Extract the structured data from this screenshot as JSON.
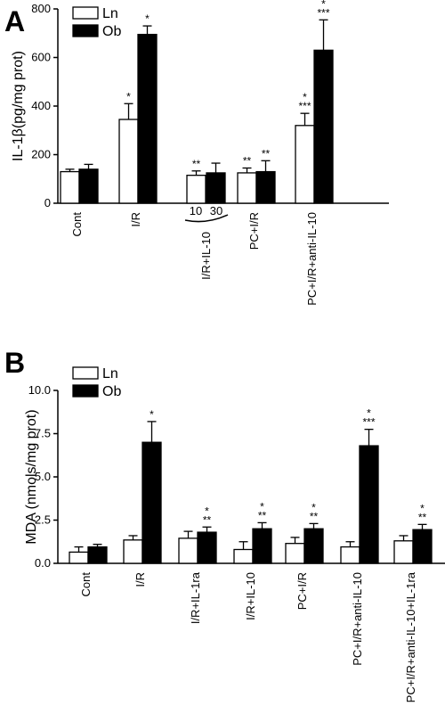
{
  "series_style": {
    "Ln": "#ffffff",
    "Ob": "#000000"
  },
  "chart_data": [
    {
      "type": "bar",
      "panel_label": "A",
      "ylabel": "IL-1β(pg/mg prot)",
      "ylim": [
        0,
        800
      ],
      "yticks": [
        "0",
        "200",
        "400",
        "600",
        "800"
      ],
      "categories": [
        "Cont",
        "I/R",
        "I/R+IL-10",
        "I/R+IL-10",
        "PC+I/R",
        "PC+I/R+anti-IL-10"
      ],
      "dose_labels": [
        "10",
        "30"
      ],
      "dose_group_label": "I/R+IL-10",
      "series": [
        {
          "name": "Ln",
          "values": [
            130,
            345,
            115,
            140,
            125,
            320
          ],
          "errors": [
            10,
            65,
            18,
            12,
            20,
            50
          ]
        },
        {
          "name": "Ob",
          "values": [
            140,
            695,
            125,
            140,
            130,
            630
          ],
          "errors": [
            20,
            35,
            40,
            30,
            45,
            125
          ]
        }
      ],
      "significance": [
        {
          "Ln": [],
          "Ob": []
        },
        {
          "Ln": [
            "*"
          ],
          "Ob": [
            "*"
          ]
        },
        {
          "Ln": [
            "**"
          ],
          "Ob": []
        },
        {
          "Ln": [],
          "Ob": [
            "**"
          ]
        },
        {
          "Ln": [
            "**"
          ],
          "Ob": [
            "**"
          ]
        },
        {
          "Ln": [
            "*",
            "***"
          ],
          "Ob": [
            "*",
            "***"
          ]
        }
      ],
      "legend": [
        "Ln",
        "Ob"
      ],
      "legend_position": "top-left"
    },
    {
      "type": "bar",
      "panel_label": "B",
      "ylabel": "MDA (nmols/mg prot)",
      "ylim": [
        0,
        10
      ],
      "yticks": [
        "0.0",
        "2.5",
        "5.0",
        "7.5",
        "10.0"
      ],
      "categories": [
        "Cont",
        "I/R",
        "I/R+IL-1ra",
        "I/R+IL-10",
        "PC+I/R",
        "PC+I/R+anti-IL-10",
        "PC+I/R+anti-IL-10+IL-1ra"
      ],
      "series": [
        {
          "name": "Ln",
          "values": [
            0.65,
            1.35,
            1.45,
            0.8,
            1.15,
            0.95,
            1.3
          ],
          "errors": [
            0.3,
            0.25,
            0.4,
            0.45,
            0.35,
            0.3,
            0.3
          ]
        },
        {
          "name": "Ob",
          "values": [
            0.95,
            7.0,
            1.8,
            2.0,
            2.0,
            6.8,
            1.95
          ],
          "errors": [
            0.15,
            1.2,
            0.3,
            0.35,
            0.3,
            0.95,
            0.3
          ]
        }
      ],
      "significance": [
        {
          "Ln": [],
          "Ob": []
        },
        {
          "Ln": [],
          "Ob": [
            "*"
          ]
        },
        {
          "Ln": [],
          "Ob": [
            "*",
            "**"
          ]
        },
        {
          "Ln": [],
          "Ob": [
            "*",
            "**"
          ]
        },
        {
          "Ln": [],
          "Ob": [
            "*",
            "**"
          ]
        },
        {
          "Ln": [],
          "Ob": [
            "*",
            "***"
          ]
        },
        {
          "Ln": [],
          "Ob": [
            "*",
            "**"
          ]
        }
      ],
      "legend": [
        "Ln",
        "Ob"
      ],
      "legend_position": "top-left"
    }
  ]
}
